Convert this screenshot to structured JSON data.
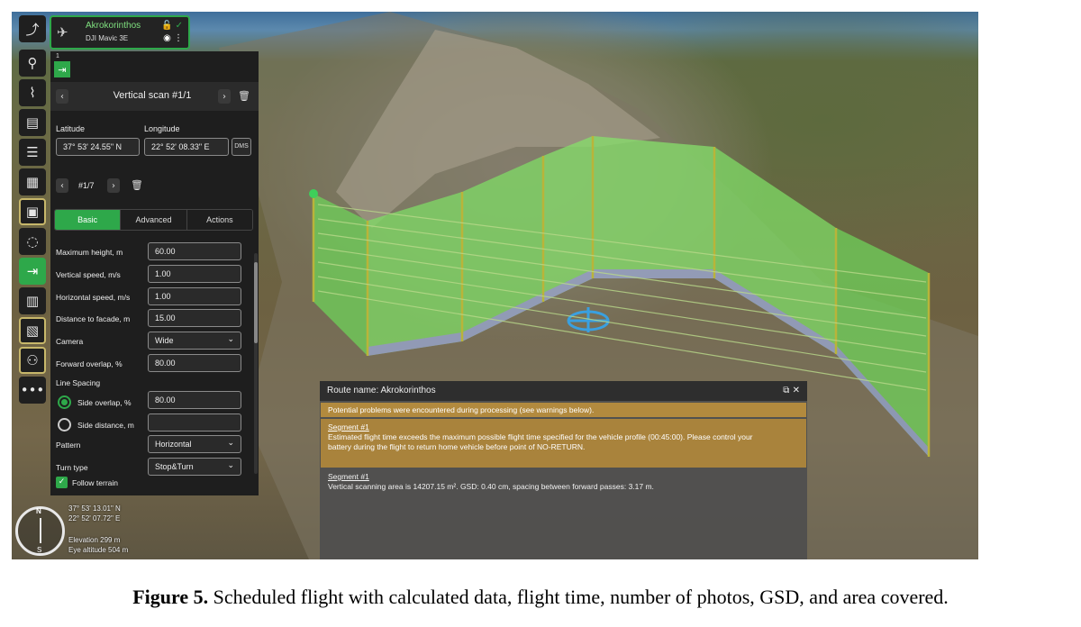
{
  "vehicle": {
    "name": "Akrokorinthos",
    "model": "DJI Mavic 3E"
  },
  "panel": {
    "waypoint_number": "1",
    "scan_title": "Vertical scan #1/1",
    "latitude_label": "Latitude",
    "longitude_label": "Longitude",
    "latitude_value": "37° 53' 24.55\" N",
    "longitude_value": "22° 52' 08.33\" E",
    "dms_label": "DMS",
    "point_index": "#1/7",
    "tabs": [
      {
        "label": "Basic",
        "active": true
      },
      {
        "label": "Advanced",
        "active": false
      },
      {
        "label": "Actions",
        "active": false
      }
    ],
    "fields": {
      "max_height": {
        "label": "Maximum height, m",
        "value": "60.00"
      },
      "vertical_speed": {
        "label": "Vertical speed, m/s",
        "value": "1.00"
      },
      "horizontal_speed": {
        "label": "Horizontal speed, m/s",
        "value": "1.00"
      },
      "distance_facade": {
        "label": "Distance to facade, m",
        "value": "15.00"
      },
      "camera": {
        "label": "Camera",
        "value": "Wide"
      },
      "forward_overlap": {
        "label": "Forward overlap, %",
        "value": "80.00"
      },
      "line_spacing": {
        "label": "Line Spacing"
      },
      "side_overlap": {
        "label": "Side overlap, %",
        "value": "80.00",
        "selected": true
      },
      "side_distance": {
        "label": "Side distance, m",
        "value": "",
        "selected": false
      },
      "pattern": {
        "label": "Pattern",
        "value": "Horizontal"
      },
      "turn_type": {
        "label": "Turn type",
        "value": "Stop&Turn"
      },
      "follow_terrain": {
        "label": "Follow terrain",
        "checked": true
      }
    }
  },
  "map_status": {
    "lat": "37° 53' 13.01\" N",
    "lon": "22° 52' 07.72\" E",
    "elevation": "Elevation 299 m",
    "eye_altitude": "Eye altitude 504 m"
  },
  "route_dialog": {
    "title": "Route name: Akrokorinthos",
    "summary": "Potential problems were encountered during processing (see warnings below).",
    "warning_segment": "Segment #1",
    "warning_text_1": "Estimated flight time exceeds the maximum possible flight time specified for the vehicle profile (00:45:00). Please control your",
    "warning_text_2": "battery during the flight to return home vehicle before point of NO-RETURN.",
    "info_segment": "Segment #1",
    "info_text": "Vertical scanning area is 14207.15 m². GSD: 0.40 cm, spacing between forward passes: 3.17 m."
  },
  "caption": {
    "label": "Figure 5.",
    "text": " Scheduled flight with calculated data, flight time, number of photos, GSD, and area covered."
  },
  "colors": {
    "accent": "#2ea84a",
    "warning": "#a9833c",
    "panel_bg": "#1e1e1e"
  },
  "icons": [
    "route-add-icon",
    "pin-icon",
    "polyline-icon",
    "photo-plan-icon",
    "list-icon",
    "area-scan-icon",
    "facade-icon",
    "circle-icon",
    "vertical-scan-icon",
    "corridor-icon",
    "cylinder-icon",
    "more-icon"
  ]
}
